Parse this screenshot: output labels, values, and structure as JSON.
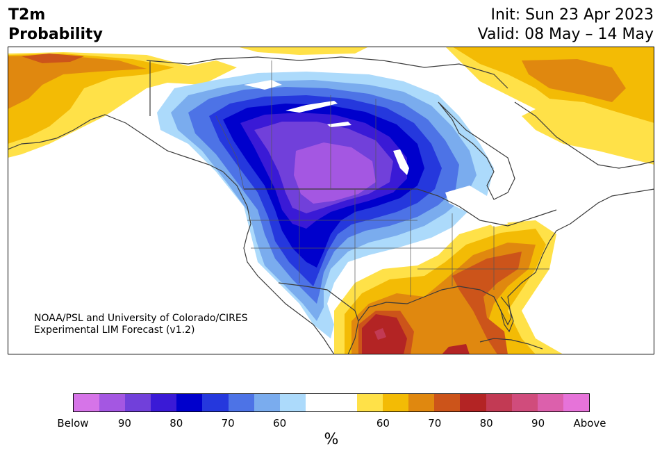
{
  "header": {
    "title_line1": "T2m",
    "title_line2": "Probability",
    "init": "Init: Sun 23 Apr 2023",
    "valid": "Valid: 08 May – 14 May"
  },
  "credit": {
    "line1": "NOAA/PSL and University of Colorado/CIRES",
    "line2": "Experimental LIM Forecast (v1.2)"
  },
  "colorbar": {
    "unit": "%",
    "colors": [
      "#d674e8",
      "#a457e2",
      "#7140da",
      "#3a1ad6",
      "#0000cc",
      "#2538dd",
      "#4d73e6",
      "#7aacee",
      "#acdafb",
      "#ffffff",
      "#ffffff",
      "#ffe148",
      "#f3bb05",
      "#e0880f",
      "#cc541a",
      "#b32424",
      "#c23a54",
      "#d04c7c",
      "#dc60ac",
      "#e673d9"
    ],
    "ticks": [
      "Below",
      "90",
      "80",
      "70",
      "60",
      "60",
      "70",
      "80",
      "90",
      "Above"
    ]
  },
  "map_colors": {
    "land": "#ffffff",
    "border": "#3a3a3a"
  }
}
